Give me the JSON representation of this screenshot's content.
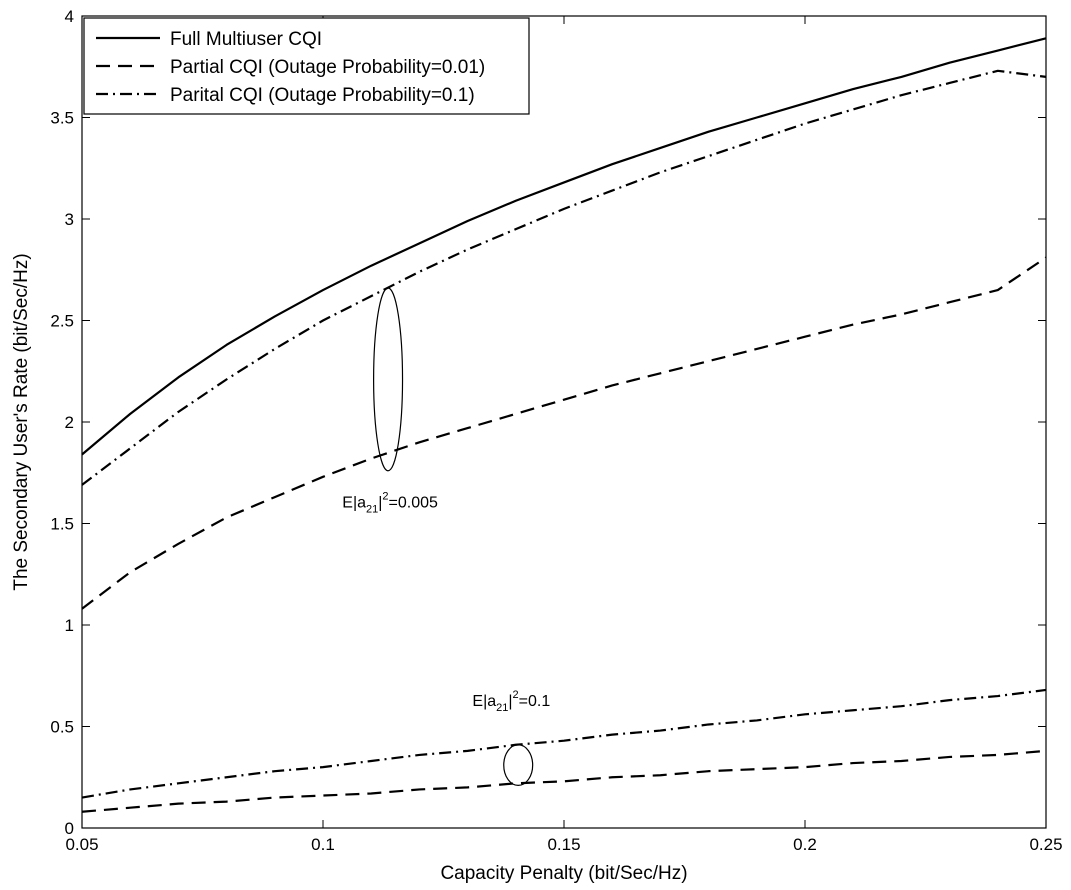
{
  "chart_data": {
    "type": "line",
    "title": "",
    "xlabel": "Capacity Penalty (bit/Sec/Hz)",
    "ylabel": "The Secondary User's Rate (bit/Sec/Hz)",
    "xlim": [
      0.05,
      0.25
    ],
    "ylim": [
      0,
      4
    ],
    "xticks": [
      0.05,
      0.1,
      0.15,
      0.2,
      0.25
    ],
    "xtick_labels": [
      "0.05",
      "0.1",
      "0.15",
      "0.2",
      "0.25"
    ],
    "yticks": [
      0,
      0.5,
      1,
      1.5,
      2,
      2.5,
      3,
      3.5,
      4
    ],
    "ytick_labels": [
      "0",
      "0.5",
      "1",
      "1.5",
      "2",
      "2.5",
      "3",
      "3.5",
      "4"
    ],
    "grid": false,
    "legend_position": "top-left",
    "x": [
      0.05,
      0.06,
      0.07,
      0.08,
      0.09,
      0.1,
      0.11,
      0.12,
      0.13,
      0.14,
      0.15,
      0.16,
      0.17,
      0.18,
      0.19,
      0.2,
      0.21,
      0.22,
      0.23,
      0.24,
      0.25
    ],
    "series": [
      {
        "name": "Full Multiuser CQI",
        "style": "solid",
        "values": [
          1.84,
          2.04,
          2.22,
          2.38,
          2.52,
          2.65,
          2.77,
          2.88,
          2.99,
          3.09,
          3.18,
          3.27,
          3.35,
          3.43,
          3.5,
          3.57,
          3.64,
          3.7,
          3.77,
          3.83,
          3.89
        ]
      },
      {
        "name": "Partial CQI (Outage Probability=0.01)",
        "style": "dashed",
        "values": [
          1.08,
          1.26,
          1.4,
          1.53,
          1.63,
          1.73,
          1.82,
          1.9,
          1.97,
          2.04,
          2.11,
          2.18,
          2.24,
          2.3,
          2.36,
          2.42,
          2.48,
          2.53,
          2.59,
          2.65,
          2.81
        ]
      },
      {
        "name": "Parital CQI (Outage Probability=0.1)",
        "style": "dashdot",
        "values": [
          1.69,
          1.87,
          2.05,
          2.21,
          2.36,
          2.5,
          2.62,
          2.74,
          2.85,
          2.95,
          3.05,
          3.14,
          3.23,
          3.31,
          3.39,
          3.47,
          3.54,
          3.61,
          3.67,
          3.73,
          3.7
        ]
      },
      {
        "name": "",
        "style": "dashed",
        "values": [
          0.08,
          0.1,
          0.12,
          0.13,
          0.15,
          0.16,
          0.17,
          0.19,
          0.2,
          0.22,
          0.23,
          0.25,
          0.26,
          0.28,
          0.29,
          0.3,
          0.32,
          0.33,
          0.35,
          0.36,
          0.38
        ]
      },
      {
        "name": "",
        "style": "dashdot",
        "values": [
          0.15,
          0.19,
          0.22,
          0.25,
          0.28,
          0.3,
          0.33,
          0.36,
          0.38,
          0.41,
          0.43,
          0.46,
          0.48,
          0.51,
          0.53,
          0.56,
          0.58,
          0.6,
          0.63,
          0.65,
          0.68
        ]
      }
    ],
    "annotations": [
      {
        "text_main": "E|a",
        "text_sub": "21",
        "text_sup": "2",
        "text_tail": "=0.005",
        "ellipse_center": [
          0.1135,
          2.21
        ],
        "ellipse_rx": 0.003,
        "ellipse_ry": 0.45,
        "label_at": [
          0.104,
          1.58
        ]
      },
      {
        "text_main": "E|a",
        "text_sub": "21",
        "text_sup": "2",
        "text_tail": "=0.1",
        "ellipse_center": [
          0.1405,
          0.31
        ],
        "ellipse_rx": 0.003,
        "ellipse_ry": 0.1,
        "label_at": [
          0.131,
          0.6
        ]
      }
    ]
  }
}
